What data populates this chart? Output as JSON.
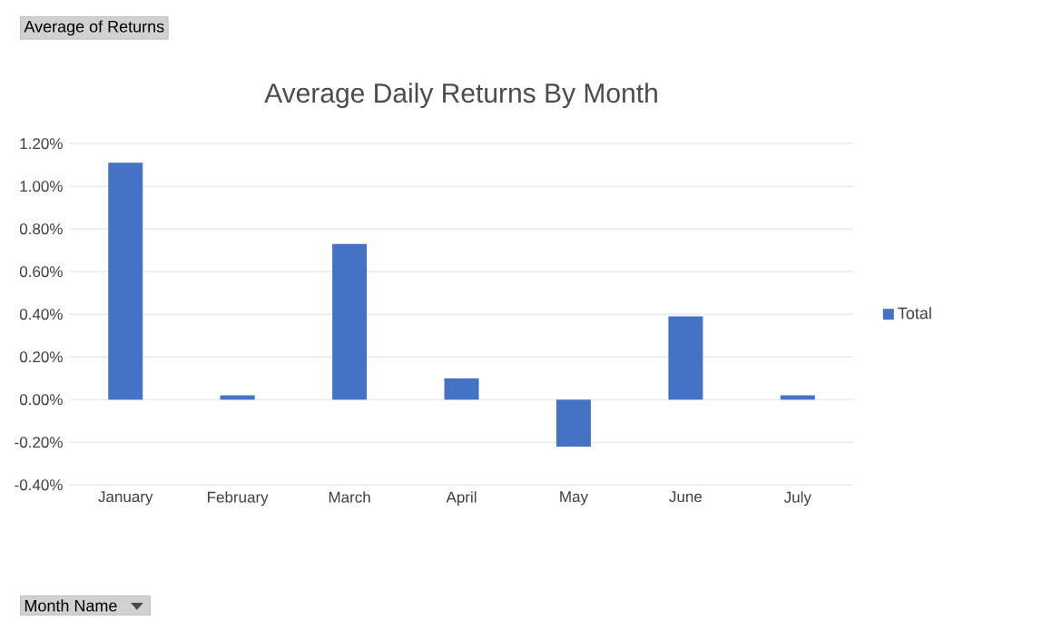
{
  "chart_data": {
    "type": "bar",
    "title": "Average Daily Returns By Month",
    "categories": [
      "January",
      "February",
      "March",
      "April",
      "May",
      "June",
      "July"
    ],
    "series": [
      {
        "name": "Total",
        "color": "#4472c4",
        "values": [
          1.11,
          0.02,
          0.73,
          0.1,
          -0.22,
          0.39,
          0.02
        ]
      }
    ],
    "ylim": [
      -0.4,
      1.2
    ],
    "yticks": [
      {
        "value": -0.4,
        "label": "-0.40%"
      },
      {
        "value": -0.2,
        "label": "-0.20%"
      },
      {
        "value": 0,
        "label": "0.00%"
      },
      {
        "value": 0.2,
        "label": "0.20%"
      },
      {
        "value": 0.4,
        "label": "0.40%"
      },
      {
        "value": 0.6,
        "label": "0.60%"
      },
      {
        "value": 0.8,
        "label": "0.80%"
      },
      {
        "value": 1.0,
        "label": "1.00%"
      },
      {
        "value": 1.2,
        "label": "1.20%"
      }
    ],
    "grid": "y",
    "legend": "right",
    "annotations": [
      "Average of Returns",
      "Month Name"
    ]
  }
}
